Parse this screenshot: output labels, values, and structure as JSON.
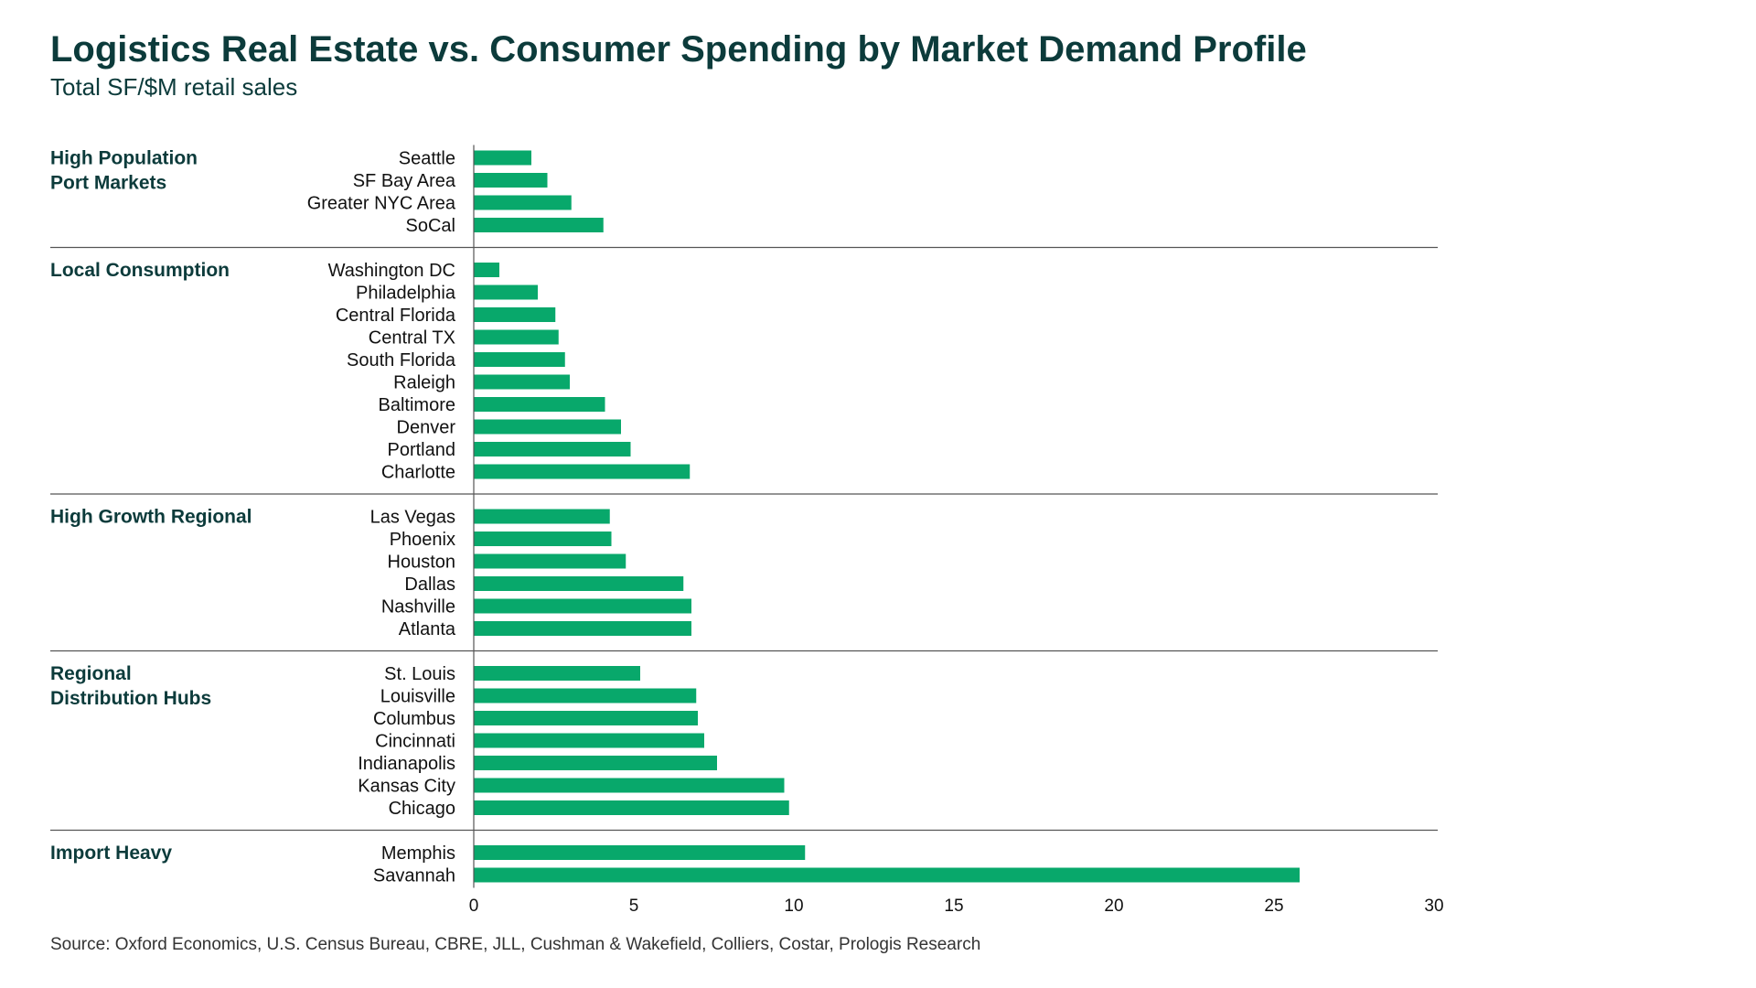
{
  "chart_data": {
    "type": "bar",
    "orientation": "horizontal",
    "title": "Logistics Real Estate vs. Consumer Spending by Market Demand Profile",
    "subtitle": "Total SF/$M retail sales",
    "xlabel": "",
    "ylabel": "",
    "xlim": [
      0,
      30
    ],
    "xticks": [
      0,
      5,
      10,
      15,
      20,
      25,
      30
    ],
    "grid": false,
    "color": "#08a86b",
    "groups": [
      {
        "name_lines": [
          "High Population",
          "Port Markets"
        ],
        "categories": [
          "Seattle",
          "SF Bay Area",
          "Greater NYC Area",
          "SoCal"
        ],
        "values": [
          1.8,
          2.3,
          3.05,
          4.05
        ]
      },
      {
        "name_lines": [
          "Local Consumption"
        ],
        "categories": [
          "Washington DC",
          "Philadelphia",
          "Central Florida",
          "Central TX",
          "South Florida",
          "Raleigh",
          "Baltimore",
          "Denver",
          "Portland",
          "Charlotte"
        ],
        "values": [
          0.8,
          2.0,
          2.55,
          2.65,
          2.85,
          3.0,
          4.1,
          4.6,
          4.9,
          6.75
        ]
      },
      {
        "name_lines": [
          "High Growth Regional"
        ],
        "categories": [
          "Las Vegas",
          "Phoenix",
          "Houston",
          "Dallas",
          "Nashville",
          "Atlanta"
        ],
        "values": [
          4.25,
          4.3,
          4.75,
          6.55,
          6.8,
          6.8
        ]
      },
      {
        "name_lines": [
          "Regional",
          "Distribution Hubs"
        ],
        "categories": [
          "St. Louis",
          "Louisville",
          "Columbus",
          "Cincinnati",
          "Indianapolis",
          "Kansas City",
          "Chicago"
        ],
        "values": [
          5.2,
          6.95,
          7.0,
          7.2,
          7.6,
          9.7,
          9.85
        ]
      },
      {
        "name_lines": [
          "Import Heavy"
        ],
        "categories": [
          "Memphis",
          "Savannah"
        ],
        "values": [
          10.35,
          25.8
        ]
      }
    ]
  },
  "source": "Source: Oxford Economics, U.S. Census Bureau, CBRE, JLL, Cushman & Wakefield, Colliers, Costar, Prologis Research"
}
